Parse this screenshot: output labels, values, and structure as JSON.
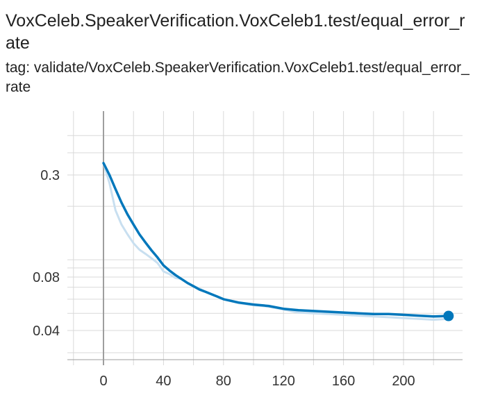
{
  "title": "VoxCeleb.SpeakerVerification.VoxCeleb1.test/equal_error_rate",
  "tag_line": "tag: validate/VoxCeleb.SpeakerVerification.VoxCeleb1.test/equal_error_rate",
  "chart_data": {
    "type": "line",
    "title": "VoxCeleb.SpeakerVerification.VoxCeleb1.test/equal_error_rate",
    "xlabel": "",
    "ylabel": "",
    "y_scale": "log",
    "xlim": [
      -20,
      240
    ],
    "ylim": [
      0.027,
      0.5
    ],
    "x_ticks": [
      0,
      40,
      80,
      120,
      160,
      200
    ],
    "x_tick_labels": [
      "0",
      "40",
      "80",
      "120",
      "160",
      "200"
    ],
    "y_ticks": [
      0.3,
      0.08,
      0.04
    ],
    "y_tick_labels": [
      "0.3",
      "0.08",
      "0.04"
    ],
    "grid": true,
    "colors": {
      "smoothed": "#0077bb",
      "raw": "#c8dff0",
      "grid": "#d9d9d9",
      "zero_line": "#9e9e9e"
    },
    "series": [
      {
        "role": "raw",
        "x": [
          0,
          4,
          8,
          12,
          16,
          20,
          24,
          28,
          32,
          36,
          40,
          44,
          48,
          52,
          56,
          60,
          64,
          68,
          72,
          76,
          80,
          90,
          100,
          110,
          120,
          130,
          140,
          150,
          160,
          170,
          180,
          190,
          200,
          210,
          220,
          230
        ],
        "y": [
          0.35,
          0.27,
          0.19,
          0.158,
          0.139,
          0.124,
          0.114,
          0.108,
          0.102,
          0.096,
          0.086,
          0.083,
          0.079,
          0.078,
          0.074,
          0.071,
          0.069,
          0.066,
          0.064,
          0.062,
          0.06,
          0.057,
          0.0555,
          0.0545,
          0.0525,
          0.0505,
          0.05,
          0.0495,
          0.049,
          0.0485,
          0.048,
          0.0475,
          0.047,
          0.0465,
          0.046,
          0.0465
        ]
      },
      {
        "role": "smoothed",
        "x": [
          0,
          4,
          8,
          12,
          16,
          20,
          24,
          28,
          32,
          36,
          40,
          44,
          48,
          52,
          56,
          60,
          64,
          68,
          72,
          76,
          80,
          90,
          100,
          110,
          120,
          130,
          140,
          150,
          160,
          170,
          180,
          190,
          200,
          210,
          220,
          230
        ],
        "y": [
          0.35,
          0.3,
          0.25,
          0.21,
          0.18,
          0.158,
          0.139,
          0.125,
          0.113,
          0.103,
          0.093,
          0.087,
          0.082,
          0.078,
          0.074,
          0.071,
          0.068,
          0.066,
          0.064,
          0.062,
          0.06,
          0.0575,
          0.056,
          0.055,
          0.053,
          0.052,
          0.0515,
          0.051,
          0.0505,
          0.05,
          0.0495,
          0.0495,
          0.049,
          0.0485,
          0.048,
          0.0483
        ]
      }
    ]
  }
}
